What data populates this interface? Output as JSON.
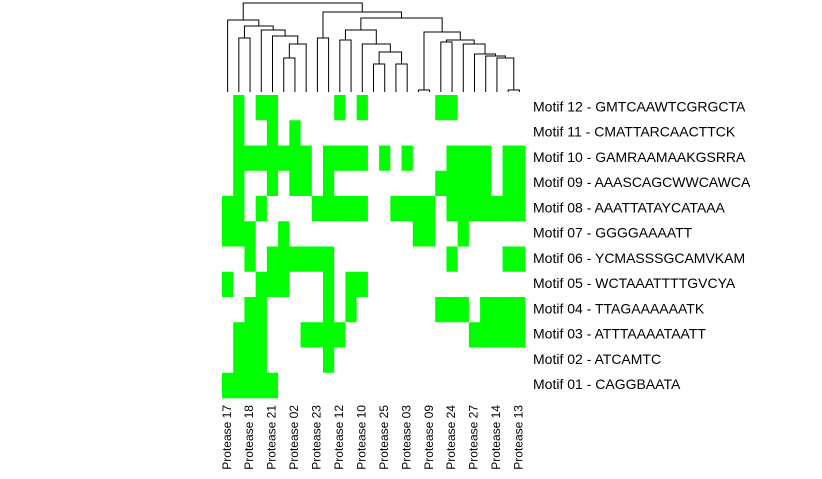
{
  "chart_data": {
    "type": "heatmap",
    "columns": [
      "Protease 17",
      null,
      "Protease 18",
      null,
      "Protease 21",
      null,
      "Protease 02",
      null,
      "Protease 23",
      null,
      "Protease 12",
      null,
      "Protease 10",
      null,
      "Protease 25",
      null,
      "Protease 03",
      null,
      "Protease 09",
      null,
      "Protease 24",
      null,
      "Protease 27",
      null,
      "Protease 14",
      null,
      "Protease 13"
    ],
    "rows": [
      "Motif 12 - GMTCAAWTCGRGCTA",
      "Motif 11 - CMATTARCAACTTCK",
      "Motif 10 - GAMRAAMAAKGSRRA",
      "Motif 09 - AAASCAGCWWCAWCA",
      "Motif 08 - AAATTATAYCATAAA",
      "Motif 07 - GGGGAAAATT",
      "Motif 06 - YCMASSSGCAMVKAM",
      "Motif 05 - WCTAAATTTTGVCYA",
      "Motif 04 - TTAGAAAAAATK",
      "Motif 03 - ATTTAAAATAATT",
      "Motif 02 - ATCAMTC",
      "Motif 01 - CAGGBAATA"
    ],
    "values": [
      [
        0,
        1,
        0,
        1,
        1,
        0,
        0,
        0,
        0,
        0,
        1,
        0,
        1,
        0,
        0,
        0,
        0,
        0,
        0,
        1,
        1,
        0,
        0,
        0,
        0,
        0,
        0
      ],
      [
        0,
        1,
        0,
        0,
        1,
        0,
        1,
        0,
        0,
        0,
        0,
        0,
        0,
        0,
        0,
        0,
        0,
        0,
        0,
        0,
        0,
        0,
        0,
        0,
        0,
        0,
        0
      ],
      [
        0,
        1,
        1,
        1,
        1,
        1,
        1,
        1,
        0,
        1,
        1,
        1,
        1,
        0,
        1,
        0,
        1,
        0,
        0,
        0,
        1,
        1,
        1,
        1,
        0,
        1,
        1
      ],
      [
        0,
        1,
        0,
        0,
        1,
        0,
        1,
        1,
        0,
        1,
        0,
        0,
        0,
        0,
        0,
        0,
        0,
        0,
        0,
        1,
        1,
        1,
        1,
        1,
        0,
        1,
        1
      ],
      [
        1,
        1,
        0,
        1,
        0,
        0,
        0,
        0,
        1,
        1,
        1,
        1,
        1,
        0,
        0,
        1,
        1,
        1,
        1,
        0,
        1,
        1,
        1,
        1,
        1,
        1,
        1
      ],
      [
        1,
        1,
        1,
        0,
        0,
        1,
        0,
        0,
        0,
        0,
        0,
        0,
        0,
        0,
        0,
        0,
        0,
        1,
        1,
        0,
        0,
        1,
        0,
        0,
        0,
        0,
        0
      ],
      [
        0,
        0,
        1,
        0,
        1,
        1,
        1,
        1,
        1,
        1,
        0,
        0,
        0,
        0,
        0,
        0,
        0,
        0,
        0,
        0,
        1,
        0,
        0,
        0,
        0,
        1,
        1
      ],
      [
        1,
        0,
        0,
        1,
        1,
        1,
        0,
        0,
        0,
        1,
        0,
        1,
        1,
        0,
        0,
        0,
        0,
        0,
        0,
        0,
        0,
        0,
        0,
        0,
        0,
        0,
        0
      ],
      [
        0,
        0,
        1,
        1,
        0,
        0,
        0,
        0,
        0,
        1,
        0,
        1,
        0,
        0,
        0,
        0,
        0,
        0,
        0,
        1,
        1,
        1,
        0,
        1,
        1,
        1,
        1
      ],
      [
        0,
        1,
        1,
        1,
        0,
        0,
        0,
        1,
        1,
        1,
        1,
        0,
        0,
        0,
        0,
        0,
        0,
        0,
        0,
        0,
        0,
        0,
        1,
        1,
        1,
        1,
        1
      ],
      [
        0,
        1,
        1,
        1,
        0,
        0,
        0,
        0,
        0,
        1,
        0,
        0,
        0,
        0,
        0,
        0,
        0,
        0,
        0,
        0,
        0,
        0,
        0,
        0,
        0,
        0,
        0
      ],
      [
        1,
        1,
        1,
        1,
        1,
        0,
        0,
        0,
        0,
        0,
        0,
        0,
        0,
        0,
        0,
        0,
        0,
        0,
        0,
        0,
        0,
        0,
        0,
        0,
        0,
        0,
        0
      ]
    ],
    "low_color": "#ffffff",
    "high_color": "#00ff00"
  }
}
